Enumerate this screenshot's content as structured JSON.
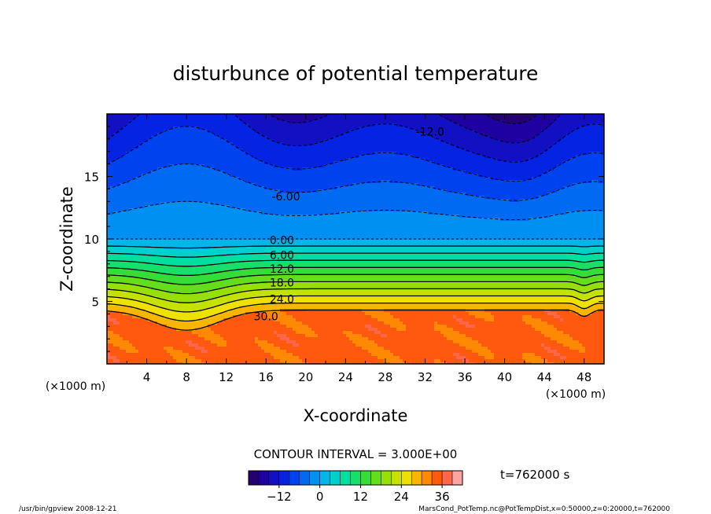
{
  "chart_data": {
    "type": "heatmap",
    "title": "disturbunce of potential temperature",
    "xlabel": "X-coordinate",
    "ylabel": "Z-coordinate",
    "x_unit": "(×1000 m)",
    "y_unit": "(×1000 m)",
    "xlim": [
      0,
      50
    ],
    "ylim": [
      0,
      20
    ],
    "x_ticks": [
      4,
      8,
      12,
      16,
      20,
      24,
      28,
      32,
      36,
      40,
      44,
      48
    ],
    "y_ticks": [
      5,
      10,
      15
    ],
    "contour_interval_text": "CONTOUR INTERVAL = 3.000E+00",
    "time_text": "t=762000 s",
    "contour_labels": [
      {
        "text": "-12.0",
        "x": 32.5,
        "z": 18.6
      },
      {
        "text": "-6.00",
        "x": 18.0,
        "z": 13.4
      },
      {
        "text": "0.00",
        "x": 17.6,
        "z": 9.9
      },
      {
        "text": "6.00",
        "x": 17.6,
        "z": 8.7
      },
      {
        "text": "12.0",
        "x": 17.6,
        "z": 7.6
      },
      {
        "text": "18.0",
        "x": 17.6,
        "z": 6.5
      },
      {
        "text": "24.0",
        "x": 17.6,
        "z": 5.2
      },
      {
        "text": "30.0",
        "x": 16.0,
        "z": 3.8
      }
    ],
    "colorbar": {
      "min": -21,
      "max": 42,
      "tick_values": [
        -12,
        0,
        12,
        24,
        36
      ],
      "tick_labels": [
        "−12",
        "0",
        "12",
        "24",
        "36"
      ]
    }
  },
  "footer": {
    "left": "/usr/bin/gpview   2008-12-21",
    "right": "MarsCond_PotTemp.nc@PotTempDist,x=0:50000,z=0:20000,t=762000"
  }
}
